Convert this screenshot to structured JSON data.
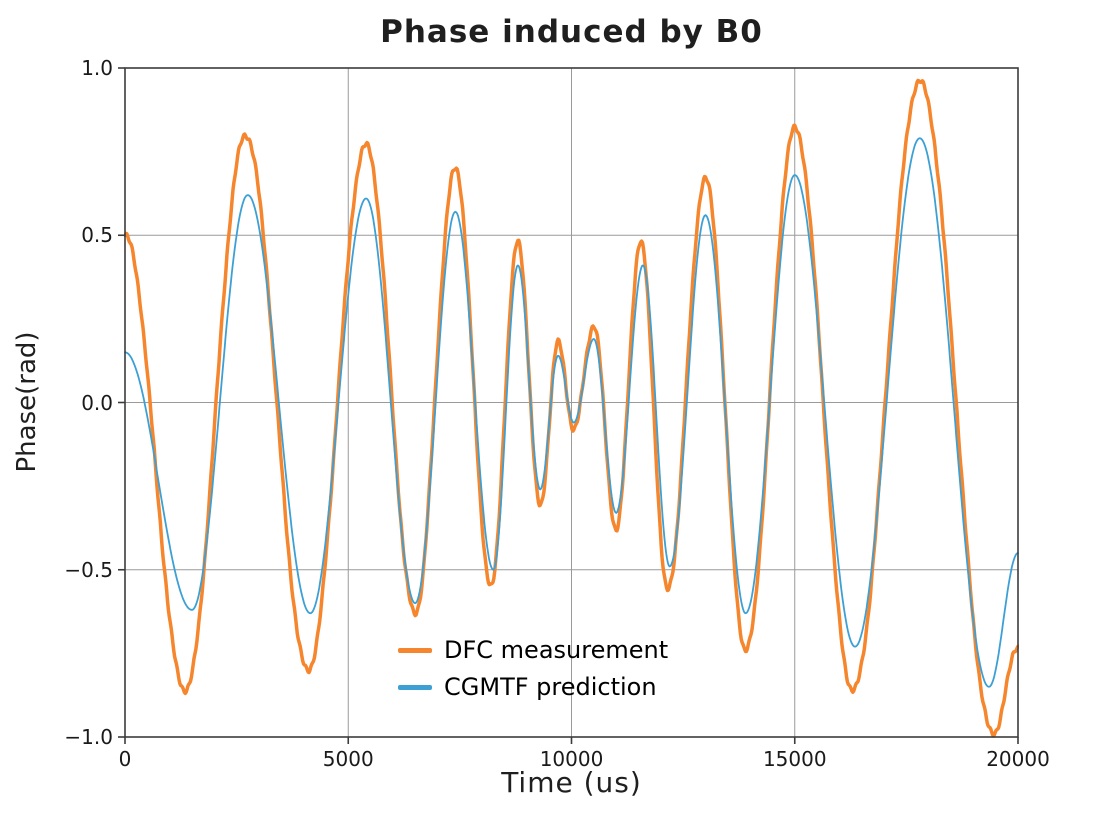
{
  "chart_data": {
    "type": "line",
    "title": "Phase induced by B0",
    "xlabel": "Time (us)",
    "ylabel": "Phase(rad)",
    "xlim": [
      0,
      20000
    ],
    "ylim": [
      -1.0,
      1.0
    ],
    "xticks": [
      0,
      5000,
      10000,
      15000,
      20000
    ],
    "xtick_labels": [
      "0",
      "5000",
      "10000",
      "15000",
      "20000"
    ],
    "yticks": [
      1.0,
      0.5,
      0.0,
      -0.5,
      -1.0
    ],
    "ytick_labels": [
      "1.0",
      "0.5",
      "0.0",
      "−0.5",
      "−1.0"
    ],
    "grid": true,
    "grid_color": "#9a9a9a",
    "spine_color": "#3c3c3c",
    "legend_position": "lower center",
    "interpolation": "cosine-through-extrema",
    "series": [
      {
        "name": "DFC measurement",
        "color": "#f5862d",
        "line_width": 3.5,
        "noisy": true,
        "points": [
          [
            0,
            0.5
          ],
          [
            1350,
            -0.86
          ],
          [
            2700,
            0.8
          ],
          [
            4100,
            -0.8
          ],
          [
            5400,
            0.77
          ],
          [
            6500,
            -0.63
          ],
          [
            7400,
            0.7
          ],
          [
            8200,
            -0.55
          ],
          [
            8800,
            0.48
          ],
          [
            9300,
            -0.31
          ],
          [
            9700,
            0.18
          ],
          [
            10050,
            -0.08
          ],
          [
            10500,
            0.23
          ],
          [
            11000,
            -0.38
          ],
          [
            11550,
            0.48
          ],
          [
            12150,
            -0.56
          ],
          [
            13000,
            0.67
          ],
          [
            13900,
            -0.74
          ],
          [
            15000,
            0.82
          ],
          [
            16300,
            -0.86
          ],
          [
            17800,
            0.96
          ],
          [
            19450,
            -0.99
          ],
          [
            20000,
            -0.73
          ]
        ]
      },
      {
        "name": "CGMTF prediction",
        "color": "#3da0d5",
        "line_width": 1.8,
        "noisy": false,
        "points": [
          [
            0,
            0.15
          ],
          [
            1500,
            -0.62
          ],
          [
            2750,
            0.62
          ],
          [
            4150,
            -0.63
          ],
          [
            5400,
            0.61
          ],
          [
            6500,
            -0.6
          ],
          [
            7400,
            0.57
          ],
          [
            8250,
            -0.5
          ],
          [
            8800,
            0.41
          ],
          [
            9300,
            -0.26
          ],
          [
            9700,
            0.14
          ],
          [
            10050,
            -0.06
          ],
          [
            10500,
            0.19
          ],
          [
            11000,
            -0.33
          ],
          [
            11600,
            0.41
          ],
          [
            12200,
            -0.49
          ],
          [
            13000,
            0.56
          ],
          [
            13900,
            -0.63
          ],
          [
            15000,
            0.68
          ],
          [
            16350,
            -0.73
          ],
          [
            17800,
            0.79
          ],
          [
            19350,
            -0.85
          ],
          [
            20000,
            -0.45
          ]
        ]
      }
    ]
  }
}
